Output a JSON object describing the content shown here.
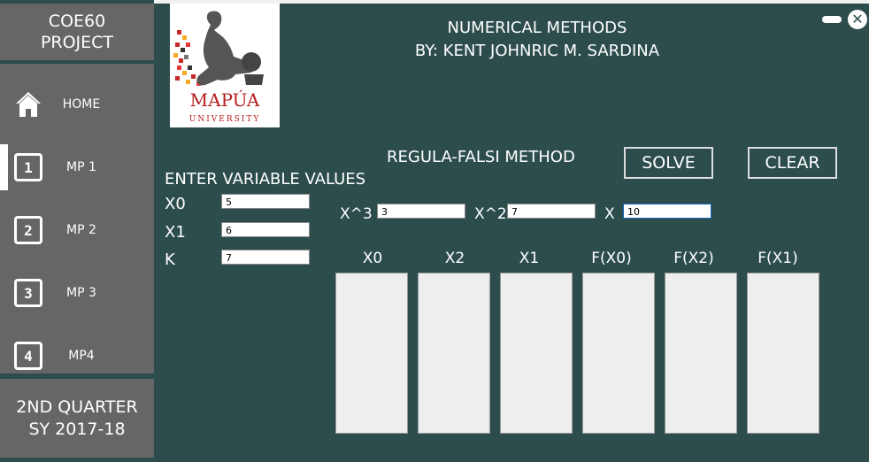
{
  "sidebar": {
    "title_line1": "COE60",
    "title_line2": "PROJECT",
    "items": [
      {
        "label": "HOME",
        "icon": "home-icon"
      },
      {
        "label": "MP 1",
        "icon": "number-1-icon",
        "glyph": "1"
      },
      {
        "label": "MP 2",
        "icon": "number-2-icon",
        "glyph": "2"
      },
      {
        "label": "MP 3",
        "icon": "number-3-icon",
        "glyph": "3"
      },
      {
        "label": "MP4",
        "icon": "number-4-icon",
        "glyph": "4"
      }
    ],
    "footer_line1": "2ND QUARTER",
    "footer_line2": "SY 2017-18"
  },
  "header": {
    "title": "NUMERICAL METHODS",
    "author": "BY: KENT JOHNRIC M. SARDINA",
    "logo_text": "MAPÚA",
    "logo_subtext": "UNIVERSITY"
  },
  "method": {
    "title": "REGULA-FALSI METHOD",
    "solve_label": "SOLVE",
    "clear_label": "CLEAR"
  },
  "variables": {
    "heading": "ENTER VARIABLE VALUES",
    "x0_label": "X0",
    "x0_value": "5",
    "x1_label": "X1",
    "x1_value": "6",
    "k_label": "K",
    "k_value": "7"
  },
  "coefficients": {
    "x3_label": "X^3",
    "x3_value": "3",
    "x2_label": "X^2",
    "x2_value": "7",
    "x_label": "X",
    "x_value": "10"
  },
  "table": {
    "columns": [
      "X0",
      "X2",
      "X1",
      "F(X0)",
      "F(X2)",
      "F(X1)"
    ]
  },
  "colors": {
    "background": "#2d4d4d",
    "sidebar_block": "#666666",
    "accent": "#ffffff"
  }
}
